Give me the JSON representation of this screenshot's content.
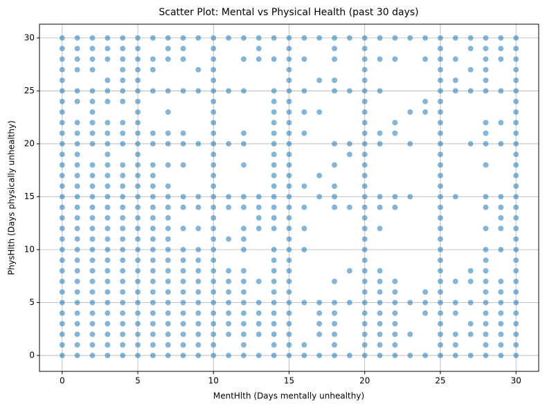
{
  "chart_data": {
    "type": "scatter",
    "title": "Scatter Plot: Mental vs Physical Health (past 30 days)",
    "x_label": "MentHlth (Days mentally unhealthy)",
    "y_label": "PhysHlth (Days physically unhealthy)",
    "color": "#1f77b4",
    "alpha": 0.55,
    "grid": true,
    "xlim": [
      -1.5,
      31.5
    ],
    "ylim": [
      -1.5,
      31.3
    ],
    "xticks": [
      0,
      5,
      10,
      15,
      20,
      25,
      30
    ],
    "yticks": [
      0,
      5,
      10,
      15,
      20,
      25,
      30
    ],
    "rows": [
      {
        "y": 0,
        "x": [
          0,
          1,
          2,
          3,
          4,
          5,
          6,
          7,
          8,
          9,
          10,
          11,
          12,
          13,
          14,
          15,
          16,
          17,
          18,
          19,
          20,
          21,
          22,
          23,
          24,
          25,
          26,
          27,
          28,
          29,
          30
        ]
      },
      {
        "y": 1,
        "x": [
          0,
          1,
          2,
          3,
          4,
          5,
          6,
          7,
          8,
          9,
          10,
          12,
          14,
          15,
          16,
          18,
          20,
          21,
          22,
          25,
          26,
          28,
          29,
          30
        ]
      },
      {
        "y": 2,
        "x": [
          0,
          1,
          2,
          3,
          4,
          5,
          6,
          7,
          8,
          9,
          10,
          11,
          12,
          13,
          14,
          15,
          17,
          18,
          20,
          21,
          22,
          23,
          25,
          26,
          27,
          28,
          29,
          30
        ]
      },
      {
        "y": 3,
        "x": [
          0,
          1,
          2,
          3,
          4,
          5,
          6,
          7,
          8,
          9,
          10,
          11,
          12,
          13,
          14,
          15,
          17,
          18,
          20,
          21,
          22,
          25,
          27,
          28,
          29,
          30
        ]
      },
      {
        "y": 4,
        "x": [
          0,
          1,
          2,
          3,
          4,
          5,
          6,
          7,
          8,
          9,
          10,
          11,
          12,
          13,
          14,
          15,
          17,
          18,
          20,
          21,
          22,
          24,
          25,
          26,
          28,
          29,
          30
        ]
      },
      {
        "y": 5,
        "x": [
          0,
          1,
          2,
          3,
          4,
          5,
          6,
          7,
          8,
          9,
          10,
          11,
          12,
          13,
          14,
          15,
          16,
          17,
          18,
          19,
          20,
          21,
          22,
          23,
          24,
          25,
          26,
          27,
          28,
          29,
          30
        ]
      },
      {
        "y": 6,
        "x": [
          0,
          1,
          2,
          3,
          4,
          5,
          6,
          7,
          8,
          9,
          10,
          11,
          12,
          14,
          15,
          20,
          21,
          22,
          24,
          25,
          28,
          29,
          30
        ]
      },
      {
        "y": 7,
        "x": [
          0,
          1,
          2,
          3,
          4,
          5,
          6,
          7,
          8,
          9,
          10,
          11,
          12,
          13,
          14,
          15,
          18,
          20,
          21,
          22,
          25,
          26,
          27,
          28,
          29,
          30
        ]
      },
      {
        "y": 8,
        "x": [
          0,
          1,
          2,
          3,
          4,
          5,
          6,
          7,
          8,
          9,
          10,
          11,
          12,
          14,
          15,
          19,
          20,
          21,
          25,
          27,
          28,
          30
        ]
      },
      {
        "y": 9,
        "x": [
          0,
          1,
          2,
          3,
          4,
          5,
          6,
          7,
          8,
          9,
          10,
          14,
          15,
          20,
          25,
          28,
          30
        ]
      },
      {
        "y": 10,
        "x": [
          0,
          1,
          2,
          3,
          4,
          5,
          6,
          7,
          8,
          9,
          10,
          12,
          14,
          15,
          16,
          20,
          25,
          28,
          29,
          30
        ]
      },
      {
        "y": 11,
        "x": [
          0,
          1,
          2,
          3,
          4,
          5,
          6,
          7,
          10,
          11,
          12,
          15,
          20,
          25,
          30
        ]
      },
      {
        "y": 12,
        "x": [
          0,
          1,
          2,
          3,
          4,
          5,
          6,
          7,
          8,
          9,
          10,
          12,
          13,
          14,
          15,
          16,
          20,
          21,
          25,
          28,
          29,
          30
        ]
      },
      {
        "y": 13,
        "x": [
          0,
          1,
          2,
          3,
          4,
          5,
          6,
          7,
          10,
          13,
          14,
          15,
          20,
          25,
          29,
          30
        ]
      },
      {
        "y": 14,
        "x": [
          0,
          1,
          2,
          3,
          4,
          5,
          6,
          7,
          8,
          9,
          10,
          11,
          12,
          13,
          14,
          15,
          16,
          18,
          19,
          20,
          21,
          22,
          25,
          28,
          29,
          30
        ]
      },
      {
        "y": 15,
        "x": [
          0,
          1,
          2,
          3,
          4,
          5,
          6,
          7,
          8,
          9,
          10,
          11,
          12,
          13,
          14,
          15,
          17,
          18,
          20,
          21,
          22,
          23,
          25,
          26,
          28,
          29,
          30
        ]
      },
      {
        "y": 16,
        "x": [
          0,
          1,
          2,
          3,
          4,
          5,
          6,
          7,
          10,
          14,
          15,
          16,
          18,
          20,
          25,
          30
        ]
      },
      {
        "y": 17,
        "x": [
          0,
          1,
          2,
          3,
          4,
          5,
          6,
          10,
          14,
          15,
          17,
          20,
          25,
          30
        ]
      },
      {
        "y": 18,
        "x": [
          0,
          1,
          2,
          3,
          4,
          5,
          6,
          7,
          8,
          10,
          12,
          14,
          15,
          18,
          20,
          25,
          28,
          30
        ]
      },
      {
        "y": 19,
        "x": [
          0,
          1,
          3,
          5,
          10,
          14,
          15,
          19,
          20,
          25,
          30
        ]
      },
      {
        "y": 20,
        "x": [
          0,
          1,
          2,
          3,
          4,
          5,
          6,
          7,
          8,
          9,
          10,
          11,
          12,
          14,
          15,
          18,
          19,
          20,
          21,
          23,
          25,
          27,
          28,
          29,
          30
        ]
      },
      {
        "y": 21,
        "x": [
          0,
          1,
          2,
          3,
          4,
          5,
          6,
          7,
          8,
          10,
          12,
          14,
          15,
          16,
          20,
          21,
          22,
          25,
          28,
          30
        ]
      },
      {
        "y": 22,
        "x": [
          0,
          1,
          2,
          3,
          4,
          5,
          10,
          14,
          15,
          20,
          22,
          25,
          28,
          29,
          30
        ]
      },
      {
        "y": 23,
        "x": [
          0,
          2,
          5,
          7,
          10,
          14,
          15,
          16,
          17,
          20,
          23,
          24,
          25,
          30
        ]
      },
      {
        "y": 24,
        "x": [
          0,
          1,
          2,
          3,
          4,
          5,
          10,
          14,
          15,
          20,
          24,
          25,
          30
        ]
      },
      {
        "y": 25,
        "x": [
          0,
          1,
          2,
          3,
          4,
          5,
          6,
          7,
          8,
          9,
          10,
          11,
          12,
          14,
          15,
          16,
          18,
          19,
          20,
          21,
          25,
          26,
          27,
          28,
          29,
          30
        ]
      },
      {
        "y": 26,
        "x": [
          0,
          3,
          4,
          5,
          10,
          15,
          17,
          18,
          20,
          25,
          26,
          28,
          30
        ]
      },
      {
        "y": 27,
        "x": [
          0,
          1,
          2,
          4,
          5,
          6,
          9,
          10,
          15,
          20,
          25,
          27,
          28,
          30
        ]
      },
      {
        "y": 28,
        "x": [
          0,
          1,
          2,
          3,
          4,
          5,
          6,
          7,
          8,
          10,
          12,
          13,
          14,
          15,
          16,
          18,
          20,
          21,
          22,
          24,
          25,
          26,
          28,
          29,
          30
        ]
      },
      {
        "y": 29,
        "x": [
          0,
          1,
          2,
          3,
          4,
          5,
          7,
          8,
          10,
          13,
          15,
          18,
          20,
          25,
          27,
          28,
          29,
          30
        ]
      },
      {
        "y": 30,
        "x": [
          0,
          1,
          2,
          3,
          4,
          5,
          6,
          7,
          8,
          9,
          10,
          11,
          12,
          13,
          14,
          15,
          16,
          17,
          18,
          19,
          20,
          21,
          22,
          23,
          24,
          25,
          26,
          27,
          28,
          29,
          30
        ]
      }
    ]
  }
}
